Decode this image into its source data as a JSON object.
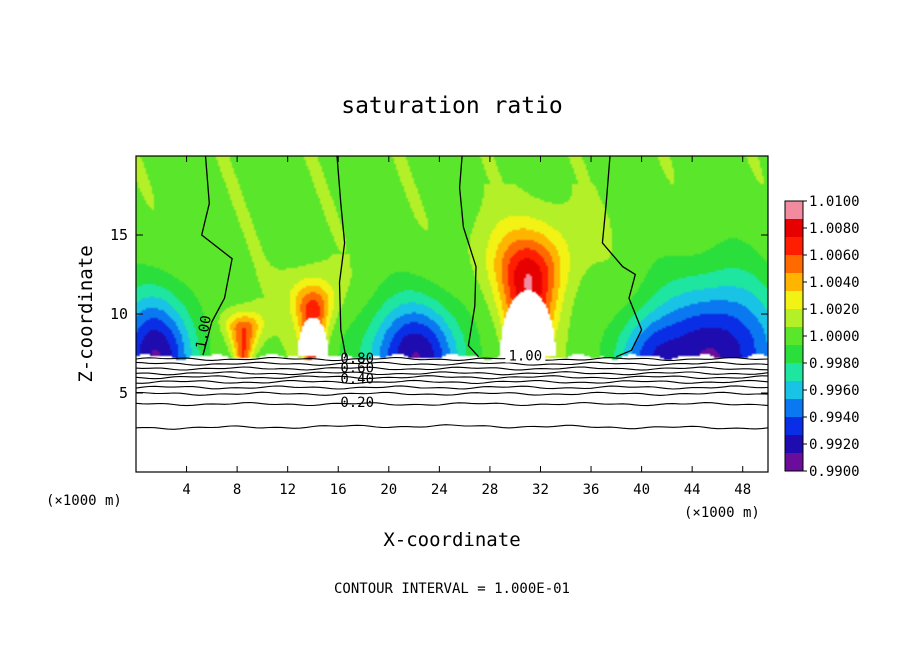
{
  "chart_data": {
    "type": "heatmap",
    "title": "saturation ratio",
    "xlabel": "X-coordinate",
    "ylabel": "Z-coordinate",
    "x_unit_left": "(×1000 m)",
    "x_unit_right": "(×1000 m)",
    "xlim": [
      0,
      50
    ],
    "ylim": [
      0,
      20
    ],
    "x_ticks": [
      4,
      8,
      12,
      16,
      20,
      24,
      28,
      32,
      36,
      40,
      44,
      48
    ],
    "x_tick_labels": [
      "4",
      "8",
      "12",
      "16",
      "20",
      "24",
      "28",
      "32",
      "36",
      "40",
      "44",
      "48"
    ],
    "y_ticks": [
      5,
      10,
      15
    ],
    "y_tick_labels": [
      "5",
      "10",
      "15"
    ],
    "footer": "CONTOUR INTERVAL = 1.000E-01",
    "colorbar": {
      "range": [
        0.99,
        1.01
      ],
      "levels": [
        "1.0100",
        "1.0080",
        "1.0060",
        "1.0040",
        "1.0020",
        "1.0000",
        "0.9980",
        "0.9960",
        "0.9940",
        "0.9920",
        "0.9900"
      ],
      "stops": [
        "#6a0d9a",
        "#1f0cb0",
        "#0a2ee6",
        "#0a78f0",
        "#19c3e6",
        "#1ee6a0",
        "#2adf3c",
        "#5ae62a",
        "#b4f028",
        "#f2f214",
        "#ffb400",
        "#ff6a00",
        "#ff1e00",
        "#e60000",
        "#f28aa0"
      ]
    },
    "cloud_base_z": 7.3,
    "cloud_base_label": "1.00",
    "contours_below": [
      {
        "level": "1.00",
        "z": 7.15
      },
      {
        "level": "0.90",
        "z": 6.85
      },
      {
        "level": "0.80",
        "z": 6.55
      },
      {
        "level": "0.70",
        "z": 6.25
      },
      {
        "level": "0.60",
        "z": 6.0
      },
      {
        "level": "0.50",
        "z": 5.7
      },
      {
        "level": "0.40",
        "z": 5.35
      },
      {
        "level": "0.30",
        "z": 4.95
      },
      {
        "level": "0.20",
        "z": 4.3
      },
      {
        "level": "0.10",
        "z": 2.85
      }
    ],
    "labeled_contours": [
      {
        "text": "0.80",
        "x": 17.5,
        "z": 6.9
      },
      {
        "text": "0.60",
        "x": 17.5,
        "z": 6.3
      },
      {
        "text": "0.40",
        "x": 17.5,
        "z": 5.6
      },
      {
        "text": "0.20",
        "x": 17.5,
        "z": 4.1
      },
      {
        "text": "1.00",
        "x": 5.7,
        "z": 8.8,
        "rotate": -80
      }
    ],
    "plumes": [
      {
        "x": 8.5,
        "top": 10.3,
        "base": 7.3,
        "peak": 1.0065,
        "hole": 0,
        "spread": 2.0
      },
      {
        "x": 14.0,
        "top": 12.5,
        "base": 7.3,
        "peak": 1.0072,
        "hole": 9.8,
        "spread": 2.2
      },
      {
        "x": 31.0,
        "top": 16.0,
        "base": 7.3,
        "peak": 1.0085,
        "hole": 11.5,
        "spread": 4.0
      }
    ],
    "dry_zones": [
      {
        "x": 1.5,
        "depth": 0.9915,
        "width": 3.2,
        "height": 4.5
      },
      {
        "x": 22.0,
        "depth": 0.9915,
        "width": 3.8,
        "height": 4.0
      },
      {
        "x": 46.0,
        "depth": 0.9912,
        "width": 5.0,
        "height": 5.5
      },
      {
        "x": 40.5,
        "depth": 0.9955,
        "width": 2.5,
        "height": 3.0
      }
    ],
    "one_contours_upper": [
      [
        [
          5.5,
          20
        ],
        [
          5.8,
          17
        ],
        [
          5.2,
          15
        ],
        [
          7.6,
          13.5
        ],
        [
          7.0,
          11.0
        ],
        [
          6.0,
          9.5
        ],
        [
          5.3,
          7.4
        ]
      ],
      [
        [
          15.9,
          20
        ],
        [
          16.2,
          17.0
        ],
        [
          16.5,
          14.5
        ],
        [
          16.1,
          12.0
        ],
        [
          16.2,
          9.0
        ],
        [
          16.6,
          7.3
        ]
      ],
      [
        [
          25.8,
          20
        ],
        [
          25.6,
          18
        ],
        [
          25.9,
          15.5
        ],
        [
          26.9,
          13.0
        ],
        [
          26.8,
          10.5
        ],
        [
          26.3,
          8.0
        ],
        [
          27.1,
          7.3
        ]
      ],
      [
        [
          37.5,
          20
        ],
        [
          37.2,
          17.0
        ],
        [
          36.9,
          14.5
        ],
        [
          38.5,
          13.0
        ],
        [
          39.5,
          12.5
        ],
        [
          39.0,
          11.0
        ],
        [
          40.0,
          9.0
        ],
        [
          39.2,
          7.7
        ],
        [
          38.0,
          7.3
        ]
      ]
    ]
  }
}
